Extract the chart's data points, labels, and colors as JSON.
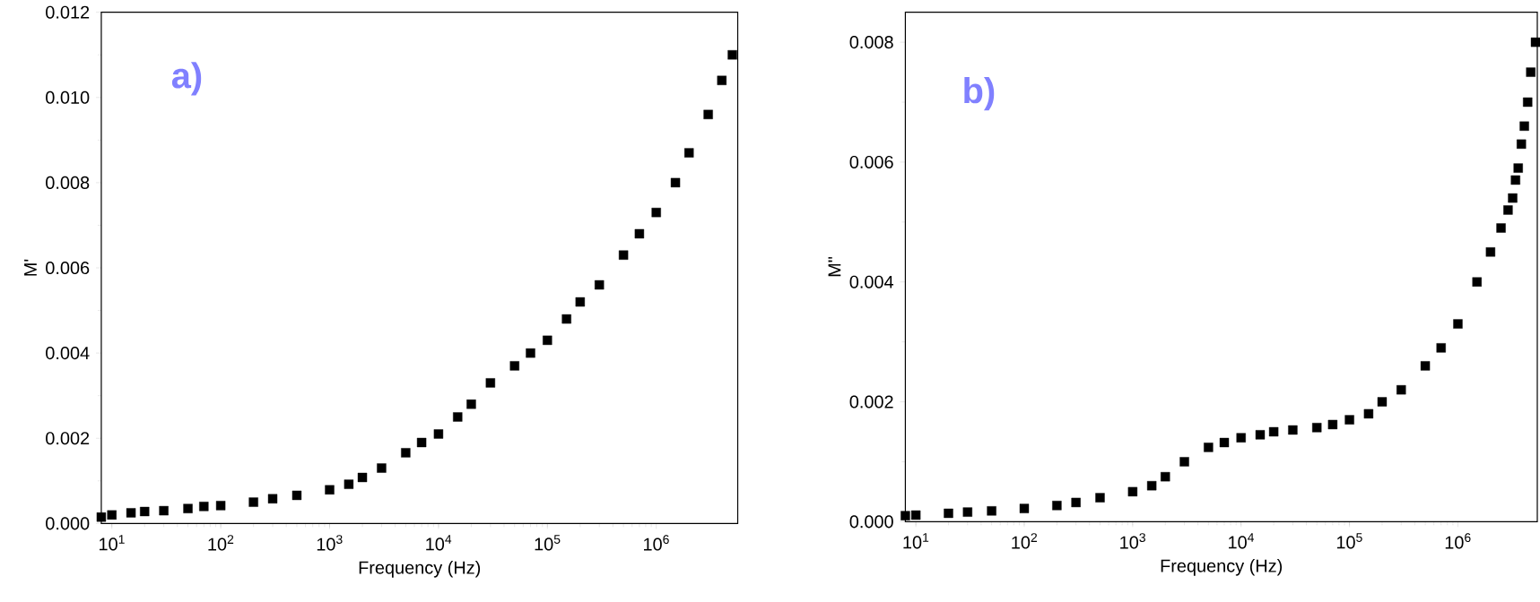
{
  "chart_data": [
    {
      "type": "scatter",
      "xlabel": "Frequency (Hz)",
      "ylabel": "M'",
      "annotations": [
        "a)"
      ],
      "log": "x",
      "marker": "square",
      "color": "#000000",
      "xlim": [
        8,
        5600000
      ],
      "ylim": [
        0,
        0.012
      ],
      "xticks": [
        {
          "value": 10,
          "label": "10$^{1}$"
        },
        {
          "value": 100,
          "label": "10$^{2}$"
        },
        {
          "value": 1000,
          "label": "10$^{3}$"
        },
        {
          "value": 10000,
          "label": "10$^{4}$"
        },
        {
          "value": 100000,
          "label": "10$^{5}$"
        },
        {
          "value": 1000000,
          "label": "10$^{6}$"
        }
      ],
      "yticks": [
        {
          "value": 0,
          "label": "0.000"
        },
        {
          "value": 0.002,
          "label": "0.002"
        },
        {
          "value": 0.004,
          "label": "0.004"
        },
        {
          "value": 0.006,
          "label": "0.006"
        },
        {
          "value": 0.008,
          "label": "0.008"
        },
        {
          "value": 0.01,
          "label": "0.010"
        },
        {
          "value": 0.012,
          "label": "0.012"
        }
      ],
      "x": [
        8,
        10,
        15,
        20,
        30,
        50,
        70,
        100,
        200,
        300,
        500,
        1000,
        1500,
        2000,
        3000,
        5000,
        7000,
        10000,
        15000,
        20000,
        30000,
        50000,
        70000,
        100000,
        150000,
        200000,
        300000,
        500000,
        700000,
        1000000,
        1500000,
        2000000,
        3000000,
        4000000,
        5000000
      ],
      "values": [
        0.00015,
        0.0002,
        0.00025,
        0.00028,
        0.0003,
        0.00035,
        0.0004,
        0.00042,
        0.0005,
        0.00058,
        0.00066,
        0.00079,
        0.00092,
        0.00108,
        0.0013,
        0.00166,
        0.0019,
        0.0021,
        0.0025,
        0.0028,
        0.0033,
        0.0037,
        0.004,
        0.0043,
        0.0048,
        0.0052,
        0.0056,
        0.0063,
        0.0068,
        0.0073,
        0.008,
        0.0087,
        0.0096,
        0.0104,
        0.011
      ]
    },
    {
      "type": "scatter",
      "xlabel": "Frequency (Hz)",
      "ylabel": "M\"",
      "annotations": [
        "b)"
      ],
      "log": "x",
      "marker": "square",
      "color": "#000000",
      "xlim": [
        8,
        5400000
      ],
      "ylim": [
        0,
        0.0085
      ],
      "xticks": [
        {
          "value": 10,
          "label": "10$^{1}$"
        },
        {
          "value": 100,
          "label": "10$^{2}$"
        },
        {
          "value": 1000,
          "label": "10$^{3}$"
        },
        {
          "value": 10000,
          "label": "10$^{4}$"
        },
        {
          "value": 100000,
          "label": "10$^{5}$"
        },
        {
          "value": 1000000,
          "label": "10$^{6}$"
        }
      ],
      "yticks": [
        {
          "value": 0,
          "label": "0.000"
        },
        {
          "value": 0.002,
          "label": "0.002"
        },
        {
          "value": 0.004,
          "label": "0.004"
        },
        {
          "value": 0.006,
          "label": "0.006"
        },
        {
          "value": 0.008,
          "label": "0.008"
        }
      ],
      "x": [
        8,
        10,
        20,
        30,
        50,
        100,
        200,
        300,
        500,
        1000,
        1500,
        2000,
        3000,
        5000,
        7000,
        10000,
        15000,
        20000,
        30000,
        50000,
        70000,
        100000,
        150000,
        200000,
        300000,
        500000,
        700000,
        1000000,
        1500000,
        2000000,
        2500000,
        2900000,
        3200000,
        3400000,
        3600000,
        3850000,
        4100000,
        4400000,
        4700000,
        5200000
      ],
      "values": [
        0.0001,
        0.00011,
        0.00014,
        0.00016,
        0.00018,
        0.00022,
        0.00027,
        0.00032,
        0.0004,
        0.0005,
        0.0006,
        0.00075,
        0.001,
        0.00124,
        0.00132,
        0.0014,
        0.00145,
        0.0015,
        0.00153,
        0.00157,
        0.00162,
        0.0017,
        0.0018,
        0.002,
        0.0022,
        0.0026,
        0.0029,
        0.0033,
        0.004,
        0.0045,
        0.0049,
        0.0052,
        0.0054,
        0.0057,
        0.0059,
        0.0063,
        0.0066,
        0.007,
        0.0075,
        0.008
      ]
    }
  ]
}
